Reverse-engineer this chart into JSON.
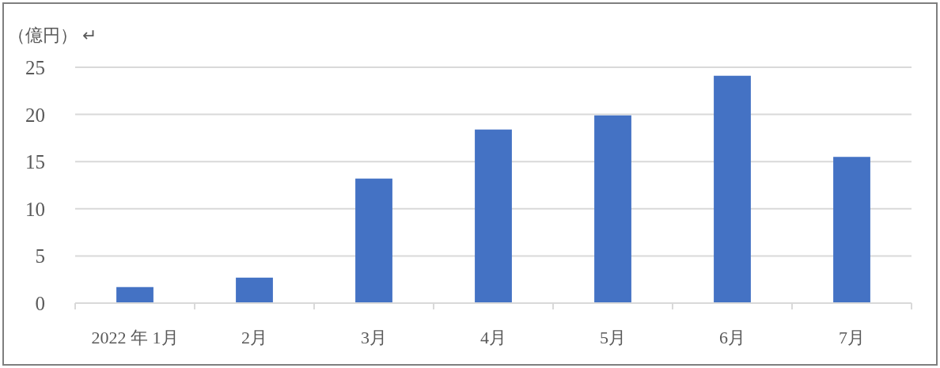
{
  "chart_data": {
    "type": "bar",
    "ylabel": "（億円） ↵",
    "categories": [
      "2022 年 1月",
      "2月",
      "3月",
      "4月",
      "5月",
      "6月",
      "7月"
    ],
    "values": [
      1.7,
      2.7,
      13.2,
      18.4,
      19.9,
      24.1,
      15.5
    ],
    "color": "#4472c4",
    "ylim": [
      0,
      25
    ],
    "yticks": [
      0,
      5,
      10,
      15,
      20,
      25
    ],
    "grid": "y"
  }
}
